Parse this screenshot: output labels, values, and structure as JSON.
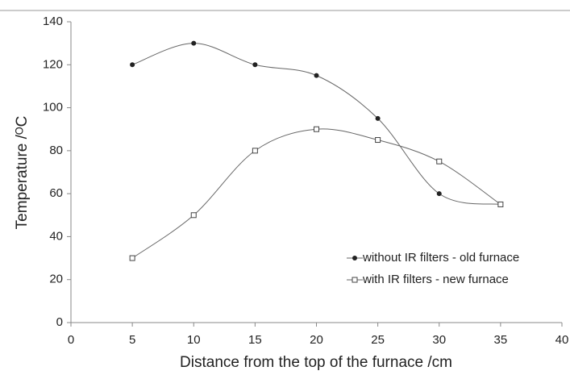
{
  "chart_data": {
    "type": "scatter-smooth",
    "x_label": "Distance from the top of the furnace /cm",
    "y_label": "Temperature /ᴼC",
    "x": [
      5,
      10,
      15,
      20,
      25,
      30,
      35
    ],
    "series": [
      {
        "name": "without IR filters - old furnace",
        "color": "#222222",
        "marker": "circle",
        "values": [
          120,
          130,
          120,
          115,
          95,
          60,
          55
        ]
      },
      {
        "name": "with IR filters - new furnace",
        "color": "#444444",
        "marker": "square",
        "values": [
          30,
          50,
          80,
          90,
          85,
          75,
          55
        ]
      }
    ],
    "xlim": [
      0,
      40
    ],
    "xticks": [
      0,
      5,
      10,
      15,
      20,
      25,
      30,
      35,
      40
    ],
    "ylim": [
      0,
      140
    ],
    "yticks": [
      0,
      20,
      40,
      60,
      80,
      100,
      120,
      140
    ],
    "grid": false,
    "legend": "lower right"
  }
}
